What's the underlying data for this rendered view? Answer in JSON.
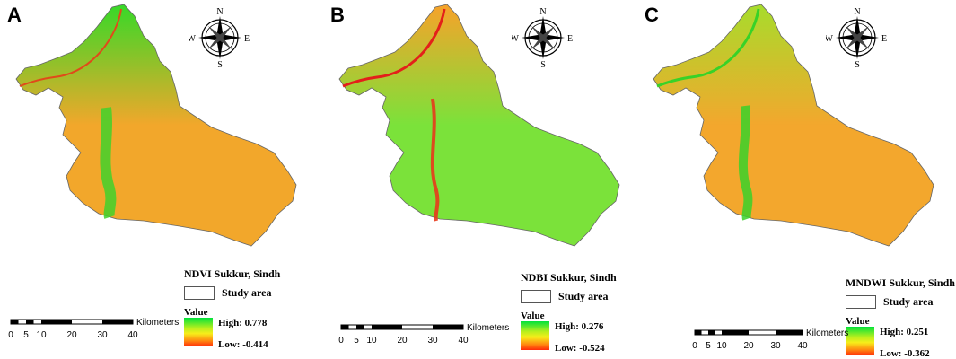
{
  "compass": {
    "n": "N",
    "s": "S",
    "e": "E",
    "w": "W"
  },
  "scalebar": {
    "unit": "Kilometers",
    "ticks": [
      "0",
      "5",
      "10",
      "20",
      "30",
      "40"
    ]
  },
  "panels": [
    {
      "letter": "A",
      "title": "NDVI Sukkur, Sindh",
      "study_area": "Study area",
      "value_label": "Value",
      "high": "High: 0.778",
      "low": "Low: -0.414",
      "colors": {
        "north": "#36d928",
        "south": "#f2a72b",
        "river": "#e04a1a",
        "strip": "#42d12c"
      }
    },
    {
      "letter": "B",
      "title": "NDBI Sukkur, Sindh",
      "study_area": "Study area",
      "value_label": "Value",
      "high": "High: 0.276",
      "low": "Low: -0.524",
      "colors": {
        "north": "#f7a22a",
        "south": "#7be23a",
        "river": "#e3201a",
        "strip": "#e83a1c"
      }
    },
    {
      "letter": "C",
      "title": "MNDWI Sukkur, Sindh",
      "study_area": "Study area",
      "value_label": "Value",
      "high": "High: 0.251",
      "low": "Low: -0.362",
      "colors": {
        "north": "#a7dc2c",
        "south": "#f3a72d",
        "river": "#38d228",
        "strip": "#39d12a"
      }
    }
  ]
}
